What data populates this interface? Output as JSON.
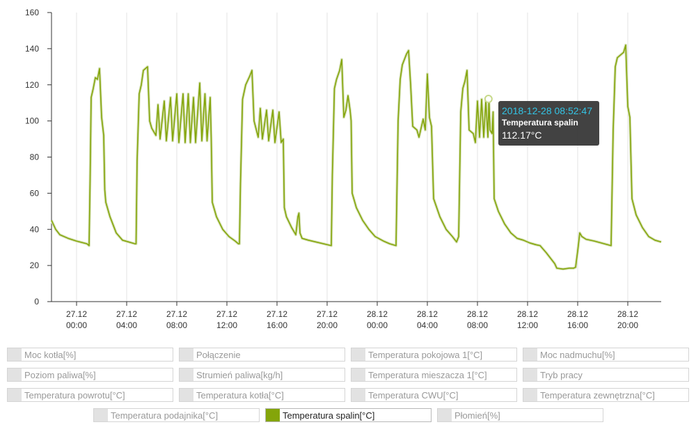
{
  "chart_data": {
    "type": "line",
    "y_ticks": [
      "0",
      "20",
      "40",
      "60",
      "80",
      "100",
      "120",
      "140",
      "160"
    ],
    "ylim": [
      0,
      160
    ],
    "x_ticks": [
      {
        "date": "27.12",
        "time": "00:00"
      },
      {
        "date": "27.12",
        "time": "04:00"
      },
      {
        "date": "27.12",
        "time": "08:00"
      },
      {
        "date": "27.12",
        "time": "12:00"
      },
      {
        "date": "27.12",
        "time": "16:00"
      },
      {
        "date": "27.12",
        "time": "20:00"
      },
      {
        "date": "28.12",
        "time": "00:00"
      },
      {
        "date": "28.12",
        "time": "04:00"
      },
      {
        "date": "28.12",
        "time": "08:00"
      },
      {
        "date": "28.12",
        "time": "12:00"
      },
      {
        "date": "28.12",
        "time": "16:00"
      },
      {
        "date": "28.12",
        "time": "20:00"
      }
    ],
    "x_start": "2018-12-26 22:00",
    "x_end": "2018-12-28 22:40",
    "grid": "vertical",
    "series": [
      {
        "name": "Temperatura spalin[°C]",
        "color": "#84a50a",
        "points": [
          [
            "2018-12-26 22:00",
            45
          ],
          [
            "2018-12-26 22:20",
            40
          ],
          [
            "2018-12-26 22:40",
            37
          ],
          [
            "2018-12-26 23:20",
            35
          ],
          [
            "2018-12-27 00:00",
            33.5
          ],
          [
            "2018-12-27 00:50",
            32
          ],
          [
            "2018-12-27 01:00",
            31
          ],
          [
            "2018-12-27 01:05",
            68
          ],
          [
            "2018-12-27 01:10",
            113
          ],
          [
            "2018-12-27 01:20",
            118
          ],
          [
            "2018-12-27 01:30",
            124
          ],
          [
            "2018-12-27 01:40",
            123
          ],
          [
            "2018-12-27 01:50",
            129
          ],
          [
            "2018-12-27 02:00",
            102
          ],
          [
            "2018-12-27 02:10",
            92
          ],
          [
            "2018-12-27 02:15",
            62
          ],
          [
            "2018-12-27 02:20",
            55
          ],
          [
            "2018-12-27 02:40",
            47
          ],
          [
            "2018-12-27 03:10",
            38
          ],
          [
            "2018-12-27 03:40",
            34
          ],
          [
            "2018-12-27 04:40",
            32
          ],
          [
            "2018-12-27 04:45",
            32
          ],
          [
            "2018-12-27 04:50",
            78
          ],
          [
            "2018-12-27 05:00",
            115
          ],
          [
            "2018-12-27 05:10",
            120
          ],
          [
            "2018-12-27 05:20",
            128
          ],
          [
            "2018-12-27 05:40",
            130
          ],
          [
            "2018-12-27 05:50",
            100
          ],
          [
            "2018-12-27 06:00",
            96
          ],
          [
            "2018-12-27 06:20",
            92
          ],
          [
            "2018-12-27 06:30",
            109
          ],
          [
            "2018-12-27 06:40",
            90
          ],
          [
            "2018-12-27 07:00",
            111
          ],
          [
            "2018-12-27 07:10",
            89
          ],
          [
            "2018-12-27 07:30",
            113
          ],
          [
            "2018-12-27 07:40",
            89
          ],
          [
            "2018-12-27 08:00",
            115
          ],
          [
            "2018-12-27 08:10",
            88
          ],
          [
            "2018-12-27 08:30",
            115
          ],
          [
            "2018-12-27 08:40",
            88
          ],
          [
            "2018-12-27 08:55",
            115
          ],
          [
            "2018-12-27 09:05",
            88
          ],
          [
            "2018-12-27 09:20",
            113
          ],
          [
            "2018-12-27 09:30",
            88
          ],
          [
            "2018-12-27 09:50",
            121
          ],
          [
            "2018-12-27 10:00",
            89
          ],
          [
            "2018-12-27 10:15",
            115
          ],
          [
            "2018-12-27 10:25",
            89
          ],
          [
            "2018-12-27 10:40",
            113
          ],
          [
            "2018-12-27 10:45",
            90
          ],
          [
            "2018-12-27 10:50",
            55
          ],
          [
            "2018-12-27 11:10",
            47
          ],
          [
            "2018-12-27 11:40",
            40
          ],
          [
            "2018-12-27 12:10",
            36
          ],
          [
            "2018-12-27 12:40",
            33.5
          ],
          [
            "2018-12-27 12:55",
            32
          ],
          [
            "2018-12-27 13:00",
            32
          ],
          [
            "2018-12-27 13:05",
            65
          ],
          [
            "2018-12-27 13:15",
            112
          ],
          [
            "2018-12-27 13:30",
            120
          ],
          [
            "2018-12-27 13:50",
            125
          ],
          [
            "2018-12-27 14:00",
            128
          ],
          [
            "2018-12-27 14:10",
            100
          ],
          [
            "2018-12-27 14:30",
            91
          ],
          [
            "2018-12-27 14:40",
            107
          ],
          [
            "2018-12-27 14:50",
            90
          ],
          [
            "2018-12-27 15:10",
            106
          ],
          [
            "2018-12-27 15:20",
            89
          ],
          [
            "2018-12-27 15:40",
            106
          ],
          [
            "2018-12-27 15:50",
            88
          ],
          [
            "2018-12-27 16:10",
            105
          ],
          [
            "2018-12-27 16:20",
            88
          ],
          [
            "2018-12-27 16:30",
            90
          ],
          [
            "2018-12-27 16:35",
            52
          ],
          [
            "2018-12-27 16:45",
            47
          ],
          [
            "2018-12-27 17:10",
            41
          ],
          [
            "2018-12-27 17:30",
            37
          ],
          [
            "2018-12-27 17:40",
            47
          ],
          [
            "2018-12-27 17:45",
            49
          ],
          [
            "2018-12-27 17:50",
            38
          ],
          [
            "2018-12-27 18:00",
            35
          ],
          [
            "2018-12-27 18:30",
            34
          ],
          [
            "2018-12-27 20:20",
            31
          ],
          [
            "2018-12-27 20:25",
            70
          ],
          [
            "2018-12-27 20:35",
            118
          ],
          [
            "2018-12-27 20:45",
            123
          ],
          [
            "2018-12-27 21:00",
            128
          ],
          [
            "2018-12-27 21:10",
            134
          ],
          [
            "2018-12-27 21:20",
            102
          ],
          [
            "2018-12-27 21:30",
            106
          ],
          [
            "2018-12-27 21:40",
            114
          ],
          [
            "2018-12-27 21:50",
            106
          ],
          [
            "2018-12-27 21:55",
            100
          ],
          [
            "2018-12-27 22:00",
            60
          ],
          [
            "2018-12-27 22:20",
            52
          ],
          [
            "2018-12-27 22:50",
            45
          ],
          [
            "2018-12-27 23:20",
            40
          ],
          [
            "2018-12-27 23:50",
            36
          ],
          [
            "2018-12-28 00:30",
            33.5
          ],
          [
            "2018-12-28 01:00",
            32
          ],
          [
            "2018-12-28 01:30",
            31
          ],
          [
            "2018-12-28 01:40",
            100
          ],
          [
            "2018-12-28 01:50",
            123
          ],
          [
            "2018-12-28 02:00",
            131
          ],
          [
            "2018-12-28 02:20",
            137
          ],
          [
            "2018-12-28 02:30",
            139
          ],
          [
            "2018-12-28 02:40",
            120
          ],
          [
            "2018-12-28 02:50",
            97
          ],
          [
            "2018-12-28 03:10",
            95
          ],
          [
            "2018-12-28 03:20",
            91
          ],
          [
            "2018-12-28 03:40",
            101
          ],
          [
            "2018-12-28 03:50",
            95
          ],
          [
            "2018-12-28 04:00",
            126
          ],
          [
            "2018-12-28 04:10",
            102
          ],
          [
            "2018-12-28 04:20",
            97
          ],
          [
            "2018-12-28 04:30",
            57
          ],
          [
            "2018-12-28 05:00",
            47
          ],
          [
            "2018-12-28 05:30",
            40
          ],
          [
            "2018-12-28 06:00",
            36
          ],
          [
            "2018-12-28 06:20",
            33
          ],
          [
            "2018-12-28 06:30",
            36
          ],
          [
            "2018-12-28 06:40",
            105
          ],
          [
            "2018-12-28 06:50",
            118
          ],
          [
            "2018-12-28 07:00",
            122
          ],
          [
            "2018-12-28 07:10",
            128
          ],
          [
            "2018-12-28 07:20",
            95
          ],
          [
            "2018-12-28 07:40",
            93
          ],
          [
            "2018-12-28 07:50",
            88
          ],
          [
            "2018-12-28 08:00",
            111
          ],
          [
            "2018-12-28 08:10",
            91
          ],
          [
            "2018-12-28 08:20",
            112
          ],
          [
            "2018-12-28 08:30",
            91
          ],
          [
            "2018-12-28 08:40",
            111
          ],
          [
            "2018-12-28 08:50",
            91
          ],
          [
            "2018-12-28 08:55",
            112
          ],
          [
            "2018-12-28 09:00",
            95
          ],
          [
            "2018-12-28 09:10",
            93
          ],
          [
            "2018-12-28 09:15",
            105
          ],
          [
            "2018-12-28 09:20",
            57
          ],
          [
            "2018-12-28 09:40",
            50
          ],
          [
            "2018-12-28 10:10",
            43
          ],
          [
            "2018-12-28 10:40",
            38
          ],
          [
            "2018-12-28 11:10",
            35
          ],
          [
            "2018-12-28 11:40",
            34
          ],
          [
            "2018-12-28 12:10",
            32.5
          ],
          [
            "2018-12-28 12:40",
            31.5
          ],
          [
            "2018-12-28 13:00",
            31
          ],
          [
            "2018-12-28 13:30",
            27
          ],
          [
            "2018-12-28 14:10",
            21
          ],
          [
            "2018-12-28 14:20",
            18.5
          ],
          [
            "2018-12-28 14:50",
            18
          ],
          [
            "2018-12-28 15:20",
            18.5
          ],
          [
            "2018-12-28 15:40",
            18.5
          ],
          [
            "2018-12-28 15:50",
            19
          ],
          [
            "2018-12-28 16:00",
            28
          ],
          [
            "2018-12-28 16:10",
            38
          ],
          [
            "2018-12-28 16:20",
            36
          ],
          [
            "2018-12-28 16:40",
            34.5
          ],
          [
            "2018-12-28 17:20",
            33.5
          ],
          [
            "2018-12-28 18:40",
            31
          ],
          [
            "2018-12-28 18:50",
            95
          ],
          [
            "2018-12-28 19:00",
            130
          ],
          [
            "2018-12-28 19:10",
            135
          ],
          [
            "2018-12-28 19:30",
            137
          ],
          [
            "2018-12-28 19:40",
            138
          ],
          [
            "2018-12-28 19:50",
            142
          ],
          [
            "2018-12-28 20:00",
            108
          ],
          [
            "2018-12-28 20:10",
            102
          ],
          [
            "2018-12-28 20:20",
            57
          ],
          [
            "2018-12-28 20:40",
            48
          ],
          [
            "2018-12-28 21:10",
            41
          ],
          [
            "2018-12-28 21:40",
            36
          ],
          [
            "2018-12-28 22:10",
            34
          ],
          [
            "2018-12-28 22:40",
            33
          ]
        ]
      }
    ],
    "tooltip": {
      "date": "2018-12-28 08:52:47",
      "series": "Temperatura spalin",
      "value": "112.17°C",
      "x": "2018-12-28 08:52:47",
      "y": 112.17
    }
  },
  "legend": [
    {
      "label": "Moc kotła[%]",
      "active": false
    },
    {
      "label": "Połączenie",
      "active": false
    },
    {
      "label": "Temperatura pokojowa 1[°C]",
      "active": false
    },
    {
      "label": "Moc nadmuchu[%]",
      "active": false
    },
    {
      "label": "Poziom paliwa[%]",
      "active": false
    },
    {
      "label": "Strumień paliwa[kg/h]",
      "active": false
    },
    {
      "label": "Temperatura mieszacza 1[°C]",
      "active": false
    },
    {
      "label": "Tryb pracy",
      "active": false
    },
    {
      "label": "Temperatura powrotu[°C]",
      "active": false
    },
    {
      "label": "Temperatura kotła[°C]",
      "active": false
    },
    {
      "label": "Temperatura CWU[°C]",
      "active": false
    },
    {
      "label": "Temperatura zewnętrzna[°C]",
      "active": false
    },
    {
      "label": "Temperatura podajnika[°C]",
      "active": false
    },
    {
      "label": "Temperatura spalin[°C]",
      "active": true
    },
    {
      "label": "Płomień[%]",
      "active": false
    }
  ]
}
